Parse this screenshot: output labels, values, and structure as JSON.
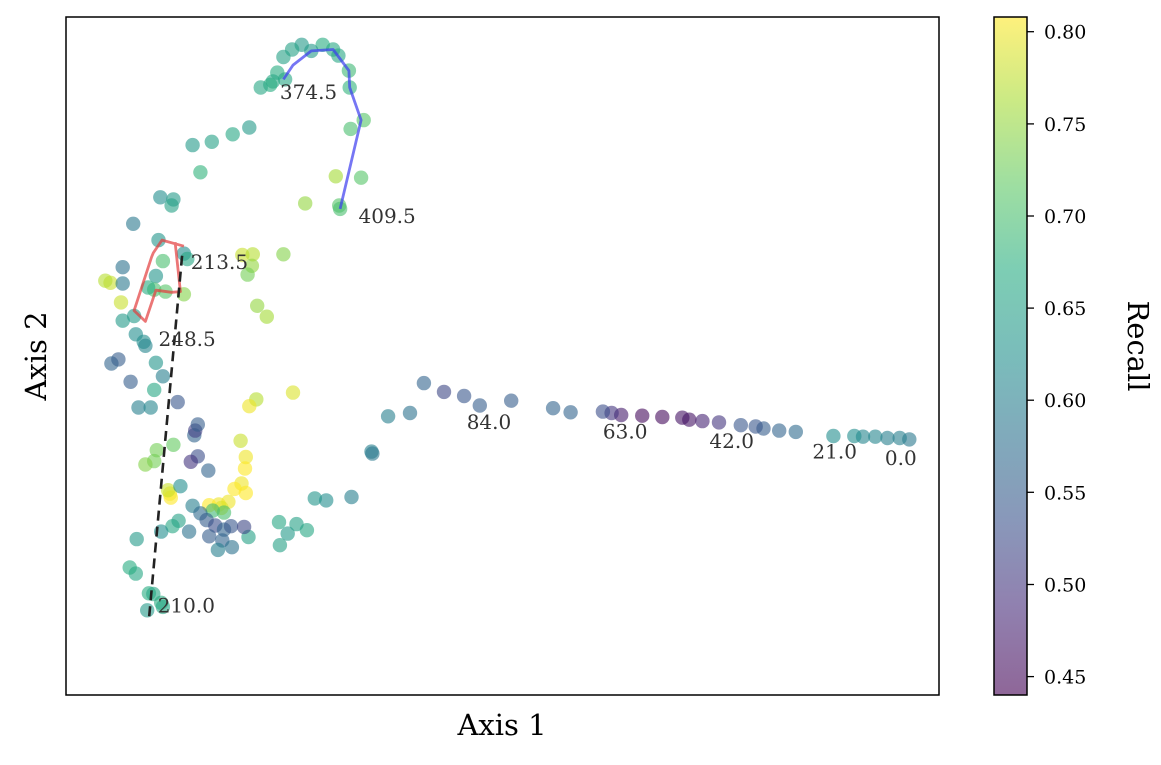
{
  "chart_data": {
    "type": "scatter",
    "title": "",
    "xlabel": "Axis 1",
    "ylabel": "Axis 2",
    "xlim": [
      0,
      100
    ],
    "ylim": [
      0,
      100
    ],
    "ticks_visible": false,
    "colorbar": {
      "label": "Recall",
      "min": 0.44,
      "max": 0.808,
      "ticks": [
        0.45,
        0.5,
        0.55,
        0.6,
        0.65,
        0.7,
        0.75,
        0.8
      ],
      "tick_labels": [
        "0.45",
        "0.50",
        "0.55",
        "0.60",
        "0.65",
        "0.70",
        "0.75",
        "0.80"
      ],
      "colormap": "viridis"
    },
    "marker_alpha": 0.6,
    "points": [
      {
        "x": 96.6,
        "y": 37.7,
        "c": 0.59
      },
      {
        "x": 95.5,
        "y": 37.9,
        "c": 0.6
      },
      {
        "x": 94.1,
        "y": 37.9,
        "c": 0.6
      },
      {
        "x": 92.7,
        "y": 38.1,
        "c": 0.61
      },
      {
        "x": 91.3,
        "y": 38.1,
        "c": 0.61
      },
      {
        "x": 90.3,
        "y": 38.2,
        "c": 0.62
      },
      {
        "x": 87.9,
        "y": 38.2,
        "c": 0.62
      },
      {
        "x": 83.6,
        "y": 38.8,
        "c": 0.57
      },
      {
        "x": 81.7,
        "y": 39.0,
        "c": 0.56
      },
      {
        "x": 79.9,
        "y": 39.3,
        "c": 0.55
      },
      {
        "x": 79.0,
        "y": 39.6,
        "c": 0.54
      },
      {
        "x": 77.3,
        "y": 39.8,
        "c": 0.54
      },
      {
        "x": 74.8,
        "y": 40.2,
        "c": 0.5
      },
      {
        "x": 72.9,
        "y": 40.4,
        "c": 0.48
      },
      {
        "x": 71.4,
        "y": 40.6,
        "c": 0.46
      },
      {
        "x": 70.6,
        "y": 40.9,
        "c": 0.46
      },
      {
        "x": 68.3,
        "y": 41.0,
        "c": 0.45
      },
      {
        "x": 66.0,
        "y": 41.2,
        "c": 0.45
      },
      {
        "x": 63.6,
        "y": 41.3,
        "c": 0.47
      },
      {
        "x": 62.5,
        "y": 41.6,
        "c": 0.5
      },
      {
        "x": 61.5,
        "y": 41.8,
        "c": 0.53
      },
      {
        "x": 57.8,
        "y": 41.7,
        "c": 0.56
      },
      {
        "x": 55.8,
        "y": 42.3,
        "c": 0.56
      },
      {
        "x": 51.0,
        "y": 43.4,
        "c": 0.55
      },
      {
        "x": 47.4,
        "y": 42.7,
        "c": 0.55
      },
      {
        "x": 45.6,
        "y": 44.1,
        "c": 0.54
      },
      {
        "x": 43.3,
        "y": 44.7,
        "c": 0.52
      },
      {
        "x": 41.0,
        "y": 46.0,
        "c": 0.56
      },
      {
        "x": 39.4,
        "y": 41.6,
        "c": 0.58
      },
      {
        "x": 36.9,
        "y": 41.1,
        "c": 0.6
      },
      {
        "x": 35.0,
        "y": 35.9,
        "c": 0.6
      },
      {
        "x": 35.1,
        "y": 35.6,
        "c": 0.59
      },
      {
        "x": 32.7,
        "y": 29.2,
        "c": 0.6
      },
      {
        "x": 29.8,
        "y": 28.7,
        "c": 0.62
      },
      {
        "x": 28.5,
        "y": 29.0,
        "c": 0.63
      },
      {
        "x": 27.6,
        "y": 24.3,
        "c": 0.66
      },
      {
        "x": 26.4,
        "y": 25.2,
        "c": 0.65
      },
      {
        "x": 24.4,
        "y": 25.5,
        "c": 0.66
      },
      {
        "x": 25.4,
        "y": 23.8,
        "c": 0.64
      },
      {
        "x": 24.5,
        "y": 22.1,
        "c": 0.65
      },
      {
        "x": 20.9,
        "y": 23.3,
        "c": 0.65
      },
      {
        "x": 26.0,
        "y": 44.6,
        "c": 0.79
      },
      {
        "x": 21.8,
        "y": 43.6,
        "c": 0.77
      },
      {
        "x": 21.0,
        "y": 42.6,
        "c": 0.8
      },
      {
        "x": 20.0,
        "y": 37.5,
        "c": 0.78
      },
      {
        "x": 20.6,
        "y": 35.1,
        "c": 0.8
      },
      {
        "x": 20.5,
        "y": 33.4,
        "c": 0.81
      },
      {
        "x": 20.1,
        "y": 31.2,
        "c": 0.8
      },
      {
        "x": 19.3,
        "y": 30.4,
        "c": 0.81
      },
      {
        "x": 20.6,
        "y": 29.8,
        "c": 0.81
      },
      {
        "x": 18.6,
        "y": 28.5,
        "c": 0.8
      },
      {
        "x": 17.5,
        "y": 28.1,
        "c": 0.8
      },
      {
        "x": 16.4,
        "y": 28.0,
        "c": 0.81
      },
      {
        "x": 17.8,
        "y": 27.6,
        "c": 0.79
      },
      {
        "x": 16.8,
        "y": 27.2,
        "c": 0.69
      },
      {
        "x": 18.1,
        "y": 26.9,
        "c": 0.7
      },
      {
        "x": 11.9,
        "y": 29.7,
        "c": 0.8
      },
      {
        "x": 12.0,
        "y": 29.1,
        "c": 0.81
      },
      {
        "x": 11.7,
        "y": 30.2,
        "c": 0.78
      },
      {
        "x": 10.1,
        "y": 34.5,
        "c": 0.73
      },
      {
        "x": 12.3,
        "y": 36.9,
        "c": 0.72
      },
      {
        "x": 9.1,
        "y": 34.0,
        "c": 0.74
      },
      {
        "x": 15.1,
        "y": 35.2,
        "c": 0.53
      },
      {
        "x": 16.3,
        "y": 33.1,
        "c": 0.56
      },
      {
        "x": 14.3,
        "y": 34.4,
        "c": 0.5
      },
      {
        "x": 14.7,
        "y": 38.3,
        "c": 0.56
      },
      {
        "x": 14.8,
        "y": 39.0,
        "c": 0.51
      },
      {
        "x": 15.1,
        "y": 39.9,
        "c": 0.55
      },
      {
        "x": 14.5,
        "y": 27.9,
        "c": 0.6
      },
      {
        "x": 15.4,
        "y": 26.8,
        "c": 0.57
      },
      {
        "x": 16.1,
        "y": 25.8,
        "c": 0.55
      },
      {
        "x": 17.1,
        "y": 25.0,
        "c": 0.53
      },
      {
        "x": 18.1,
        "y": 24.4,
        "c": 0.56
      },
      {
        "x": 18.9,
        "y": 24.9,
        "c": 0.54
      },
      {
        "x": 20.4,
        "y": 24.8,
        "c": 0.52
      },
      {
        "x": 17.9,
        "y": 22.8,
        "c": 0.56
      },
      {
        "x": 19.0,
        "y": 21.8,
        "c": 0.58
      },
      {
        "x": 17.4,
        "y": 21.4,
        "c": 0.6
      },
      {
        "x": 16.4,
        "y": 23.4,
        "c": 0.55
      },
      {
        "x": 14.1,
        "y": 24.1,
        "c": 0.58
      },
      {
        "x": 12.9,
        "y": 25.7,
        "c": 0.65
      },
      {
        "x": 12.2,
        "y": 24.9,
        "c": 0.66
      },
      {
        "x": 10.9,
        "y": 24.1,
        "c": 0.62
      },
      {
        "x": 8.1,
        "y": 23.0,
        "c": 0.64
      },
      {
        "x": 8.0,
        "y": 17.9,
        "c": 0.66
      },
      {
        "x": 7.3,
        "y": 18.8,
        "c": 0.67
      },
      {
        "x": 9.5,
        "y": 15.0,
        "c": 0.67
      },
      {
        "x": 10.0,
        "y": 14.9,
        "c": 0.66
      },
      {
        "x": 10.9,
        "y": 13.6,
        "c": 0.67
      },
      {
        "x": 11.1,
        "y": 13.0,
        "c": 0.66
      },
      {
        "x": 9.3,
        "y": 12.5,
        "c": 0.64
      },
      {
        "x": 13.1,
        "y": 30.8,
        "c": 0.62
      },
      {
        "x": 10.4,
        "y": 36.1,
        "c": 0.73
      },
      {
        "x": 8.3,
        "y": 42.4,
        "c": 0.6
      },
      {
        "x": 9.7,
        "y": 42.4,
        "c": 0.61
      },
      {
        "x": 12.8,
        "y": 43.2,
        "c": 0.54
      },
      {
        "x": 10.1,
        "y": 45.0,
        "c": 0.66
      },
      {
        "x": 11.1,
        "y": 47.0,
        "c": 0.6
      },
      {
        "x": 7.4,
        "y": 46.2,
        "c": 0.55
      },
      {
        "x": 10.3,
        "y": 49.0,
        "c": 0.63
      },
      {
        "x": 5.2,
        "y": 48.9,
        "c": 0.56
      },
      {
        "x": 6.0,
        "y": 49.5,
        "c": 0.55
      },
      {
        "x": 6.5,
        "y": 55.2,
        "c": 0.64
      },
      {
        "x": 8.0,
        "y": 53.2,
        "c": 0.62
      },
      {
        "x": 6.3,
        "y": 57.9,
        "c": 0.78
      },
      {
        "x": 5.1,
        "y": 60.8,
        "c": 0.78
      },
      {
        "x": 4.5,
        "y": 61.1,
        "c": 0.77
      },
      {
        "x": 6.5,
        "y": 60.7,
        "c": 0.59
      },
      {
        "x": 6.5,
        "y": 63.1,
        "c": 0.58
      },
      {
        "x": 7.7,
        "y": 69.5,
        "c": 0.59
      },
      {
        "x": 10.8,
        "y": 73.4,
        "c": 0.62
      },
      {
        "x": 12.3,
        "y": 73.1,
        "c": 0.64
      },
      {
        "x": 12.1,
        "y": 72.2,
        "c": 0.65
      },
      {
        "x": 15.4,
        "y": 77.1,
        "c": 0.68
      },
      {
        "x": 14.5,
        "y": 81.1,
        "c": 0.64
      },
      {
        "x": 16.7,
        "y": 81.6,
        "c": 0.65
      },
      {
        "x": 19.1,
        "y": 82.7,
        "c": 0.66
      },
      {
        "x": 21.0,
        "y": 83.7,
        "c": 0.64
      },
      {
        "x": 10.3,
        "y": 61.8,
        "c": 0.63
      },
      {
        "x": 10.6,
        "y": 67.1,
        "c": 0.63
      },
      {
        "x": 11.1,
        "y": 64.0,
        "c": 0.7
      },
      {
        "x": 10.1,
        "y": 59.8,
        "c": 0.7
      },
      {
        "x": 11.4,
        "y": 59.5,
        "c": 0.71
      },
      {
        "x": 13.5,
        "y": 59.1,
        "c": 0.74
      },
      {
        "x": 13.5,
        "y": 65.1,
        "c": 0.62
      },
      {
        "x": 13.9,
        "y": 64.3,
        "c": 0.66
      },
      {
        "x": 9.4,
        "y": 60.1,
        "c": 0.67
      },
      {
        "x": 7.8,
        "y": 55.9,
        "c": 0.64
      },
      {
        "x": 8.9,
        "y": 52.1,
        "c": 0.62
      },
      {
        "x": 9.1,
        "y": 51.5,
        "c": 0.61
      },
      {
        "x": 20.2,
        "y": 64.9,
        "c": 0.78
      },
      {
        "x": 21.4,
        "y": 65.0,
        "c": 0.77
      },
      {
        "x": 21.3,
        "y": 63.3,
        "c": 0.75
      },
      {
        "x": 24.9,
        "y": 65.0,
        "c": 0.74
      },
      {
        "x": 20.8,
        "y": 62.0,
        "c": 0.73
      },
      {
        "x": 21.9,
        "y": 57.4,
        "c": 0.75
      },
      {
        "x": 23.0,
        "y": 55.8,
        "c": 0.76
      },
      {
        "x": 27.4,
        "y": 72.5,
        "c": 0.75
      },
      {
        "x": 30.9,
        "y": 76.5,
        "c": 0.76
      },
      {
        "x": 31.3,
        "y": 72.2,
        "c": 0.71
      },
      {
        "x": 31.4,
        "y": 71.7,
        "c": 0.7
      },
      {
        "x": 33.8,
        "y": 76.3,
        "c": 0.71
      },
      {
        "x": 32.6,
        "y": 83.5,
        "c": 0.7
      },
      {
        "x": 34.1,
        "y": 84.8,
        "c": 0.71
      },
      {
        "x": 32.5,
        "y": 89.6,
        "c": 0.68
      },
      {
        "x": 32.4,
        "y": 92.1,
        "c": 0.69
      },
      {
        "x": 31.2,
        "y": 94.3,
        "c": 0.66
      },
      {
        "x": 30.6,
        "y": 95.2,
        "c": 0.66
      },
      {
        "x": 29.4,
        "y": 95.9,
        "c": 0.67
      },
      {
        "x": 28.1,
        "y": 95.0,
        "c": 0.64
      },
      {
        "x": 27.0,
        "y": 95.9,
        "c": 0.64
      },
      {
        "x": 25.9,
        "y": 95.2,
        "c": 0.65
      },
      {
        "x": 24.9,
        "y": 94.1,
        "c": 0.65
      },
      {
        "x": 24.2,
        "y": 91.8,
        "c": 0.67
      },
      {
        "x": 23.7,
        "y": 90.5,
        "c": 0.66
      },
      {
        "x": 25.1,
        "y": 90.8,
        "c": 0.66
      },
      {
        "x": 23.4,
        "y": 90.0,
        "c": 0.67
      },
      {
        "x": 22.3,
        "y": 89.6,
        "c": 0.66
      }
    ],
    "trajectories": [
      {
        "name": "blue-path",
        "color": "#3c3cf0",
        "style": "solid",
        "x": [
          24.9,
          26.0,
          28.1,
          30.6,
          32.4,
          32.5,
          33.8,
          31.4
        ],
        "y": [
          90.8,
          92.9,
          95.0,
          95.2,
          92.1,
          89.6,
          84.8,
          71.7
        ]
      },
      {
        "name": "red-path",
        "color": "#e23c3c",
        "style": "solid",
        "x": [
          13.5,
          11.0,
          10.0,
          9.8,
          7.8,
          9.1,
          10.3,
          12.1,
          13.1,
          12.5
        ],
        "y": [
          66.2,
          67.1,
          65.2,
          64.6,
          56.7,
          55.1,
          59.7,
          59.4,
          59.5,
          66.8
        ]
      },
      {
        "name": "black-dashed-path",
        "color": "#222222",
        "style": "dashed",
        "x": [
          13.3,
          9.5
        ],
        "y": [
          64.8,
          11.1
        ]
      }
    ],
    "annotations": [
      {
        "text": "0.0",
        "x": 93.8,
        "y": 33.9
      },
      {
        "text": "21.0",
        "x": 85.5,
        "y": 34.9
      },
      {
        "text": "42.0",
        "x": 73.7,
        "y": 36.4
      },
      {
        "text": "63.0",
        "x": 61.5,
        "y": 37.8
      },
      {
        "text": "84.0",
        "x": 45.9,
        "y": 39.2
      },
      {
        "text": "374.5",
        "x": 24.5,
        "y": 87.9
      },
      {
        "text": "409.5",
        "x": 33.5,
        "y": 69.6
      },
      {
        "text": "213.5",
        "x": 14.3,
        "y": 62.8
      },
      {
        "text": "248.5",
        "x": 10.6,
        "y": 51.5
      },
      {
        "text": "210.0",
        "x": 10.5,
        "y": 12.2
      }
    ]
  }
}
